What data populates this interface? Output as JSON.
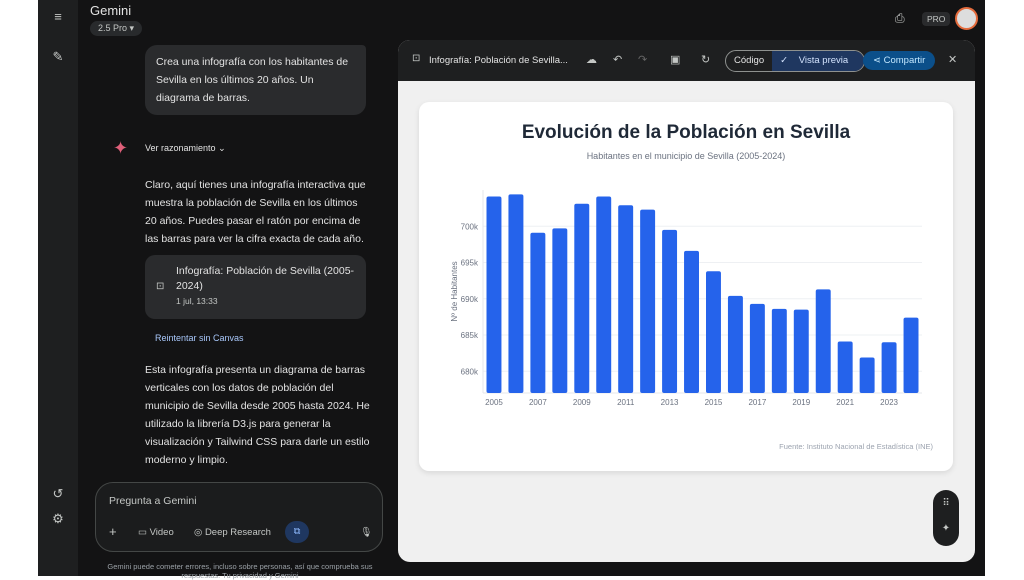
{
  "app": {
    "title": "Gemini",
    "model": "2.5 Pro",
    "pro_badge": "PRO"
  },
  "chat": {
    "user_message": "Crea una infografía con los habitantes de Sevilla en los últimos 20 años. Un diagrama de barras.",
    "reasoning_label": "Ver razonamiento",
    "reply_1": "Claro, aquí tienes una infografía interactiva que muestra la población de Sevilla en los últimos 20 años. Puedes pasar el ratón por encima de las barras para ver la cifra exacta de cada año.",
    "canvas_card": {
      "title": "Infografía: Población de Sevilla (2005-2024)",
      "date": "1 jul, 13:33"
    },
    "retry_label": "Reintentar sin Canvas",
    "reply_2": "Esta infografía presenta un diagrama de barras verticales con los datos de población del municipio de Sevilla desde 2005 hasta 2024. He utilizado la librería D3.js para generar la visualización y Tailwind CSS para darle un estilo moderno y limpio."
  },
  "input": {
    "placeholder": "Pregunta a Gemini",
    "video": "Video",
    "deep_research": "Deep Research",
    "disclaimer": "Gemini puede cometer errores, incluso sobre personas, así que comprueba sus respuestas. Tu privacidad y Gemini"
  },
  "canvas": {
    "title": "Infografía: Población de Sevilla...",
    "code_tab": "Código",
    "preview_tab": "Vista previa",
    "share": "Compartir"
  },
  "chart_data": {
    "type": "bar",
    "title": "Evolución de la Población en Sevilla",
    "subtitle": "Habitantes en el municipio de Sevilla (2005-2024)",
    "ylabel": "Nº de Habitantes",
    "source": "Fuente: Instituto Nacional de Estadística (INE)",
    "categories": [
      "2005",
      "2006",
      "2007",
      "2008",
      "2009",
      "2010",
      "2011",
      "2012",
      "2013",
      "2014",
      "2015",
      "2016",
      "2017",
      "2018",
      "2019",
      "2020",
      "2021",
      "2022",
      "2023",
      "2024"
    ],
    "values": [
      704100,
      704400,
      699100,
      699700,
      703100,
      704100,
      702900,
      702300,
      699500,
      696600,
      693800,
      690400,
      689300,
      688600,
      688500,
      691300,
      684100,
      681900,
      684000,
      687400
    ],
    "xtick_labels": [
      "2005",
      "2007",
      "2009",
      "2011",
      "2013",
      "2015",
      "2017",
      "2019",
      "2021",
      "2023"
    ],
    "yticks": [
      680000,
      685000,
      690000,
      695000,
      700000
    ],
    "ytick_labels": [
      "680k",
      "685k",
      "690k",
      "695k",
      "700k"
    ],
    "ylim": [
      677000,
      705000
    ],
    "grid": true,
    "bar_color": "#2563eb"
  }
}
